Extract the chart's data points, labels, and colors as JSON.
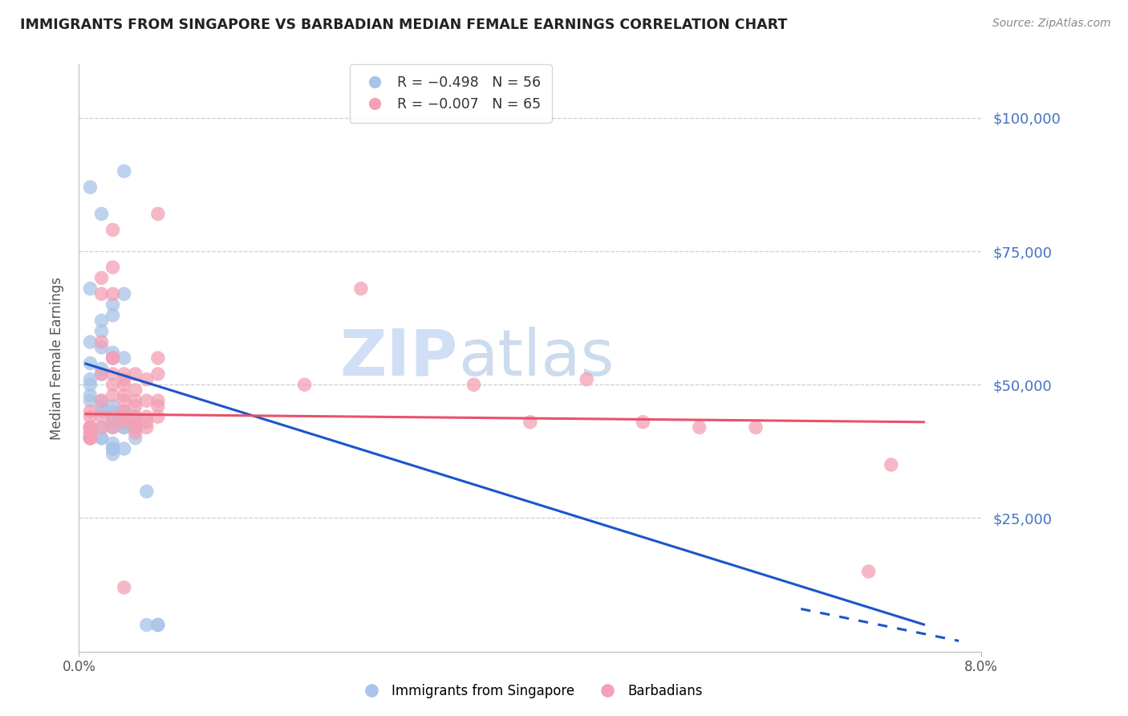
{
  "title": "IMMIGRANTS FROM SINGAPORE VS BARBADIAN MEDIAN FEMALE EARNINGS CORRELATION CHART",
  "source": "Source: ZipAtlas.com",
  "ylabel": "Median Female Earnings",
  "ytick_labels": [
    "$25,000",
    "$50,000",
    "$75,000",
    "$100,000"
  ],
  "ytick_values": [
    25000,
    50000,
    75000,
    100000
  ],
  "legend1_label_r": "R = ",
  "legend1_r_val": "-0.498",
  "legend1_n": "N = 56",
  "legend2_label_r": "R = ",
  "legend2_r_val": "-0.007",
  "legend2_n": "N = 65",
  "legend1_color": "#a8c4e8",
  "legend2_color": "#f4a0b5",
  "line1_color": "#1a56cc",
  "line2_color": "#e8526a",
  "ytick_color": "#4472c4",
  "title_color": "#222222",
  "axis_color": "#bbbbbb",
  "grid_color": "#cccccc",
  "xlim": [
    0.0,
    0.08
  ],
  "ylim": [
    0,
    110000
  ],
  "singapore_x": [
    0.001,
    0.002,
    0.004,
    0.001,
    0.003,
    0.004,
    0.003,
    0.002,
    0.002,
    0.001,
    0.002,
    0.003,
    0.003,
    0.004,
    0.001,
    0.002,
    0.002,
    0.001,
    0.001,
    0.001,
    0.001,
    0.002,
    0.003,
    0.002,
    0.002,
    0.003,
    0.004,
    0.004,
    0.005,
    0.003,
    0.003,
    0.004,
    0.004,
    0.002,
    0.001,
    0.001,
    0.001,
    0.002,
    0.003,
    0.003,
    0.003,
    0.003,
    0.004,
    0.004,
    0.003,
    0.002,
    0.005,
    0.004,
    0.004,
    0.005,
    0.006,
    0.003,
    0.005,
    0.006,
    0.007,
    0.007
  ],
  "singapore_y": [
    87000,
    82000,
    90000,
    68000,
    65000,
    67000,
    63000,
    62000,
    60000,
    58000,
    57000,
    56000,
    55000,
    55000,
    54000,
    53000,
    52000,
    51000,
    50000,
    48000,
    47000,
    47000,
    46000,
    46000,
    45000,
    45000,
    45000,
    44000,
    44000,
    43000,
    43000,
    42000,
    42000,
    42000,
    41000,
    40000,
    40000,
    40000,
    39000,
    38000,
    38000,
    37000,
    43000,
    45000,
    42000,
    40000,
    40000,
    38000,
    44000,
    42000,
    30000,
    44000,
    42000,
    5000,
    5000,
    5000
  ],
  "barbadian_x": [
    0.001,
    0.001,
    0.001,
    0.001,
    0.001,
    0.001,
    0.001,
    0.001,
    0.001,
    0.001,
    0.002,
    0.002,
    0.002,
    0.002,
    0.002,
    0.002,
    0.002,
    0.003,
    0.003,
    0.003,
    0.003,
    0.003,
    0.003,
    0.003,
    0.003,
    0.003,
    0.003,
    0.004,
    0.004,
    0.004,
    0.004,
    0.004,
    0.004,
    0.004,
    0.004,
    0.004,
    0.005,
    0.005,
    0.005,
    0.005,
    0.005,
    0.005,
    0.005,
    0.005,
    0.006,
    0.006,
    0.006,
    0.006,
    0.006,
    0.007,
    0.007,
    0.007,
    0.007,
    0.007,
    0.007,
    0.02,
    0.025,
    0.035,
    0.04,
    0.045,
    0.05,
    0.055,
    0.06,
    0.07,
    0.072
  ],
  "barbadian_y": [
    45000,
    44000,
    42000,
    42000,
    42000,
    42000,
    41000,
    40000,
    40000,
    40000,
    70000,
    67000,
    58000,
    52000,
    47000,
    44000,
    42000,
    79000,
    72000,
    67000,
    55000,
    55000,
    52000,
    50000,
    48000,
    44000,
    42000,
    52000,
    51000,
    50000,
    48000,
    47000,
    45000,
    44000,
    43000,
    12000,
    52000,
    49000,
    47000,
    46000,
    44000,
    43000,
    42000,
    41000,
    51000,
    47000,
    44000,
    43000,
    42000,
    82000,
    55000,
    52000,
    47000,
    46000,
    44000,
    50000,
    68000,
    50000,
    43000,
    51000,
    43000,
    42000,
    42000,
    15000,
    35000
  ],
  "sg_trend_x": [
    0.0005,
    0.075
  ],
  "sg_trend_y": [
    54000,
    5000
  ],
  "bb_trend_x": [
    0.0005,
    0.075
  ],
  "bb_trend_y": [
    44500,
    43000
  ],
  "bottom_legend_label1": "Immigrants from Singapore",
  "bottom_legend_label2": "Barbadians"
}
